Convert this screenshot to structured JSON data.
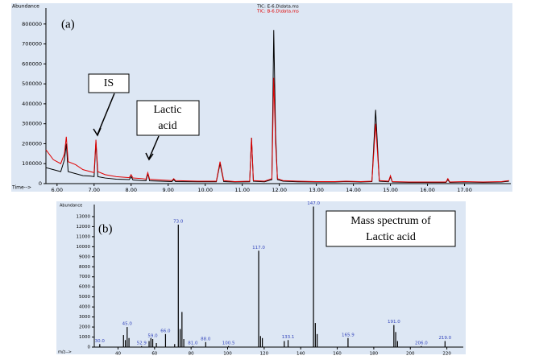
{
  "chart_data": [
    {
      "type": "line",
      "panel_label": "(a)",
      "ylabel": "Abundance",
      "xlabel": "Time-->",
      "annotations": [
        [
          "IS"
        ],
        [
          "Lactic",
          "acid"
        ]
      ],
      "x": [
        5.7,
        5.9,
        6.1,
        6.2,
        6.25,
        6.3,
        6.5,
        6.7,
        6.9,
        7.0,
        7.05,
        7.1,
        7.3,
        7.6,
        7.95,
        8.0,
        8.05,
        8.3,
        8.4,
        8.45,
        8.5,
        8.8,
        9.1,
        9.15,
        9.2,
        9.8,
        10.3,
        10.4,
        10.5,
        10.8,
        11.2,
        11.25,
        11.3,
        11.6,
        11.8,
        11.85,
        11.9,
        11.95,
        12.1,
        12.5,
        13.0,
        13.5,
        13.8,
        14.2,
        14.5,
        14.6,
        14.7,
        14.95,
        15.0,
        15.05,
        15.5,
        16.0,
        16.5,
        16.55,
        16.6,
        17.0,
        17.5,
        18.0,
        18.2
      ],
      "series": [
        {
          "name": "TIC: E-6.D\\data.ms",
          "color": "#000000",
          "values": [
            80000,
            70000,
            60000,
            120000,
            200000,
            60000,
            50000,
            40000,
            38000,
            35000,
            210000,
            35000,
            28000,
            22000,
            20000,
            35000,
            18000,
            15000,
            14000,
            50000,
            14000,
            12000,
            10000,
            20000,
            10000,
            9000,
            9000,
            100000,
            10000,
            8000,
            9000,
            230000,
            12000,
            9000,
            20000,
            770000,
            250000,
            20000,
            12000,
            9000,
            8000,
            8000,
            10000,
            8000,
            10000,
            370000,
            12000,
            9000,
            35000,
            8000,
            6000,
            6000,
            6000,
            20000,
            6000,
            8000,
            6000,
            8000,
            12000
          ]
        },
        {
          "name": "TIC: B-6.D\\data.ms",
          "color": "#e00000",
          "values": [
            170000,
            120000,
            100000,
            150000,
            235000,
            110000,
            95000,
            70000,
            60000,
            55000,
            220000,
            60000,
            45000,
            35000,
            30000,
            45000,
            28000,
            25000,
            22000,
            55000,
            22000,
            18000,
            15000,
            25000,
            15000,
            12000,
            12000,
            110000,
            15000,
            10000,
            12000,
            230000,
            15000,
            12000,
            25000,
            530000,
            200000,
            25000,
            15000,
            12000,
            10000,
            10000,
            12000,
            10000,
            12000,
            300000,
            15000,
            12000,
            40000,
            10000,
            8000,
            8000,
            8000,
            25000,
            8000,
            10000,
            8000,
            10000,
            15000
          ]
        }
      ],
      "xlim": [
        5.7,
        18.25
      ],
      "ylim": [
        0,
        880000
      ],
      "xticks": [
        {
          "value": 6,
          "label": "6.00"
        },
        {
          "value": 7,
          "label": "7.00"
        },
        {
          "value": 8,
          "label": "8.00"
        },
        {
          "value": 9,
          "label": "9.00"
        },
        {
          "value": 10,
          "label": "10.00"
        },
        {
          "value": 11,
          "label": "11.00"
        },
        {
          "value": 12,
          "label": "12.00"
        },
        {
          "value": 13,
          "label": "13.00"
        },
        {
          "value": 14,
          "label": "14.00"
        },
        {
          "value": 15,
          "label": "15.00"
        },
        {
          "value": 16,
          "label": "16.00"
        },
        {
          "value": 17,
          "label": "17.00"
        }
      ],
      "yticks": [
        0,
        100000,
        200000,
        300000,
        400000,
        500000,
        600000,
        700000,
        800000
      ]
    },
    {
      "type": "bar",
      "panel_label": "(b)",
      "ylabel": "Abundance",
      "xlabel": "m/z-->",
      "annotations": [
        [
          "Mass spectrum of",
          "Lactic acid"
        ]
      ],
      "color": "#000000",
      "label_color": "#3344bb",
      "x": [
        30,
        43,
        44,
        45,
        46,
        52.9,
        57,
        58,
        59,
        61,
        66,
        71,
        73,
        74,
        75,
        76,
        81,
        88,
        100.5,
        117,
        118,
        119,
        131,
        133.1,
        147,
        148,
        149,
        165.9,
        191,
        192,
        193,
        206,
        219
      ],
      "x_labels": [
        "30.0",
        null,
        null,
        "45.0",
        null,
        "52.9",
        null,
        null,
        "59.0",
        null,
        "66.0",
        null,
        "73.0",
        null,
        null,
        null,
        "81.0",
        "88.0",
        "100.5",
        "117.0",
        null,
        null,
        null,
        "133.1",
        "147.0",
        null,
        null,
        "165.9",
        "191.0",
        null,
        null,
        "206.0",
        "219.0"
      ],
      "values": [
        300,
        1200,
        700,
        2000,
        900,
        100,
        600,
        900,
        800,
        400,
        1300,
        300,
        12200,
        1800,
        3500,
        800,
        100,
        500,
        100,
        9600,
        1100,
        900,
        600,
        700,
        14000,
        2400,
        1300,
        900,
        2200,
        1500,
        600,
        100,
        600
      ],
      "xlim": [
        27,
        229
      ],
      "ylim": [
        0,
        14200
      ],
      "xticks": [
        40,
        60,
        80,
        100,
        120,
        140,
        160,
        180,
        200,
        220
      ],
      "yticks": [
        0,
        1000,
        2000,
        3000,
        4000,
        5000,
        6000,
        7000,
        8000,
        9000,
        10000,
        11000,
        12000,
        13000
      ]
    }
  ]
}
